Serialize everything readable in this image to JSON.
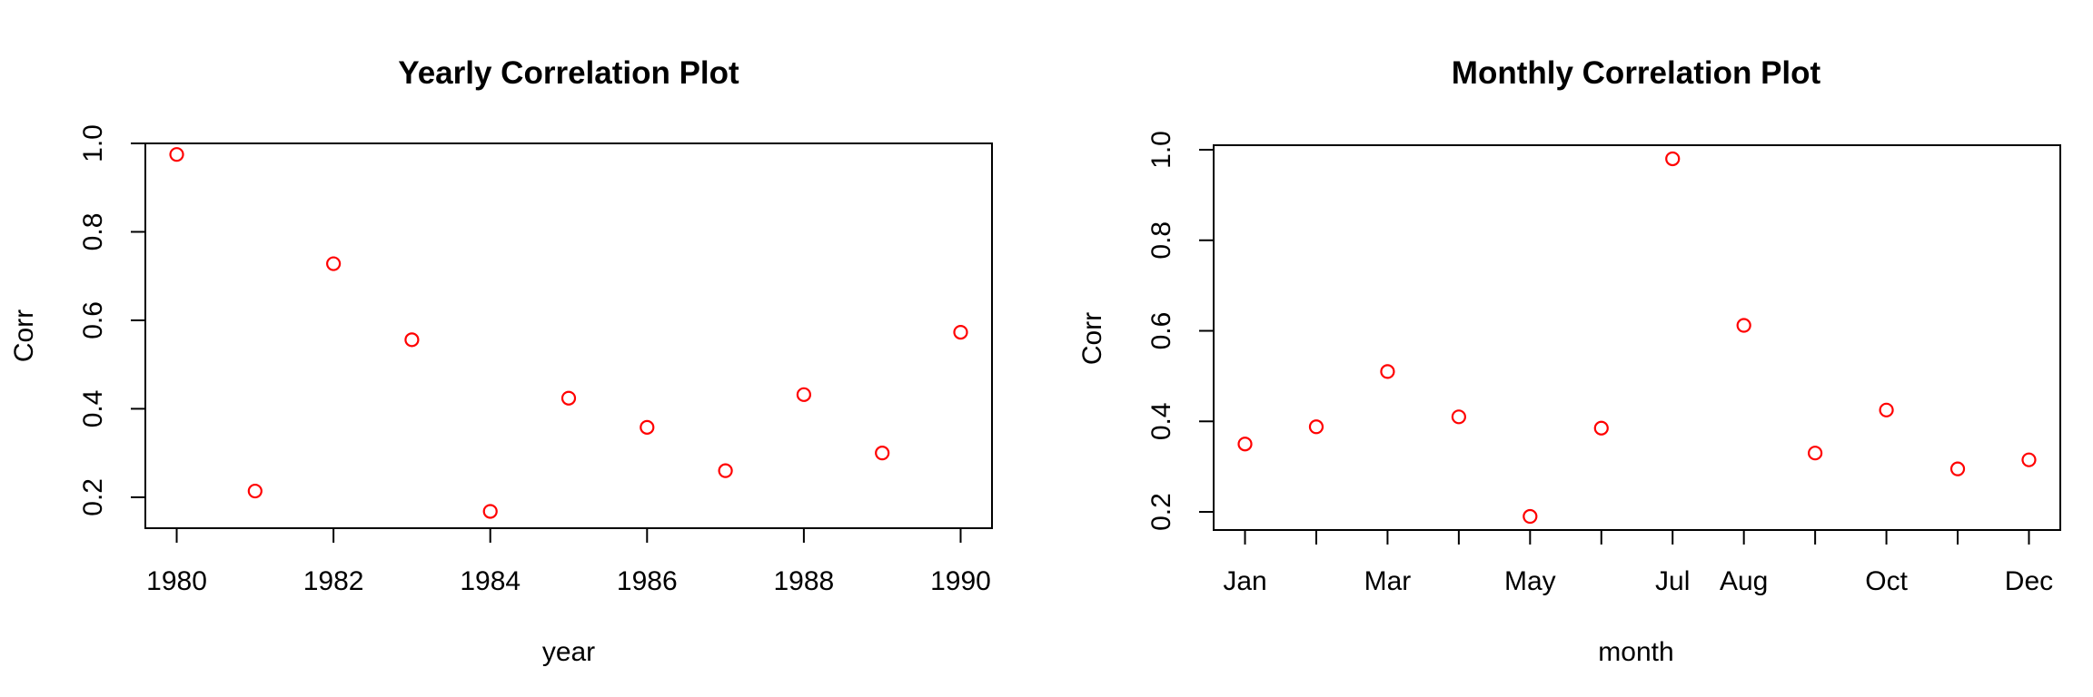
{
  "chart_data": [
    {
      "type": "scatter",
      "title": "Yearly Correlation Plot",
      "xlabel": "year",
      "ylabel": "Corr",
      "x_tick_labels": [
        "1980",
        "1982",
        "1984",
        "1986",
        "1988",
        "1990"
      ],
      "y_tick_labels": [
        "0.2",
        "0.4",
        "0.6",
        "0.8",
        "1.0"
      ],
      "xlim": [
        1979.6,
        1990.4
      ],
      "ylim": [
        0.13,
        1.0
      ],
      "point_color": "#ff0000",
      "grid": false,
      "series": [
        {
          "x": [
            1980,
            1981,
            1982,
            1983,
            1984,
            1985,
            1986,
            1987,
            1988,
            1989,
            1990
          ],
          "y": [
            0.975,
            0.214,
            0.728,
            0.556,
            0.168,
            0.424,
            0.358,
            0.26,
            0.432,
            0.3,
            0.573
          ]
        }
      ]
    },
    {
      "type": "scatter",
      "title": "Monthly Correlation Plot",
      "xlabel": "month",
      "ylabel": "Corr",
      "x_tick_labels": [
        "Jan",
        "",
        "Mar",
        "",
        "May",
        "",
        "Jul",
        "Aug",
        "",
        "Oct",
        "",
        "Dec"
      ],
      "y_tick_labels": [
        "0.2",
        "0.4",
        "0.6",
        "0.8",
        "1.0"
      ],
      "xlim": [
        0.56,
        12.44
      ],
      "ylim": [
        0.16,
        1.01
      ],
      "point_color": "#ff0000",
      "grid": false,
      "series": [
        {
          "x": [
            1,
            2,
            3,
            4,
            5,
            6,
            7,
            8,
            9,
            10,
            11,
            12
          ],
          "y": [
            0.35,
            0.388,
            0.51,
            0.41,
            0.19,
            0.385,
            0.98,
            0.612,
            0.33,
            0.425,
            0.295,
            0.315
          ]
        }
      ]
    }
  ]
}
